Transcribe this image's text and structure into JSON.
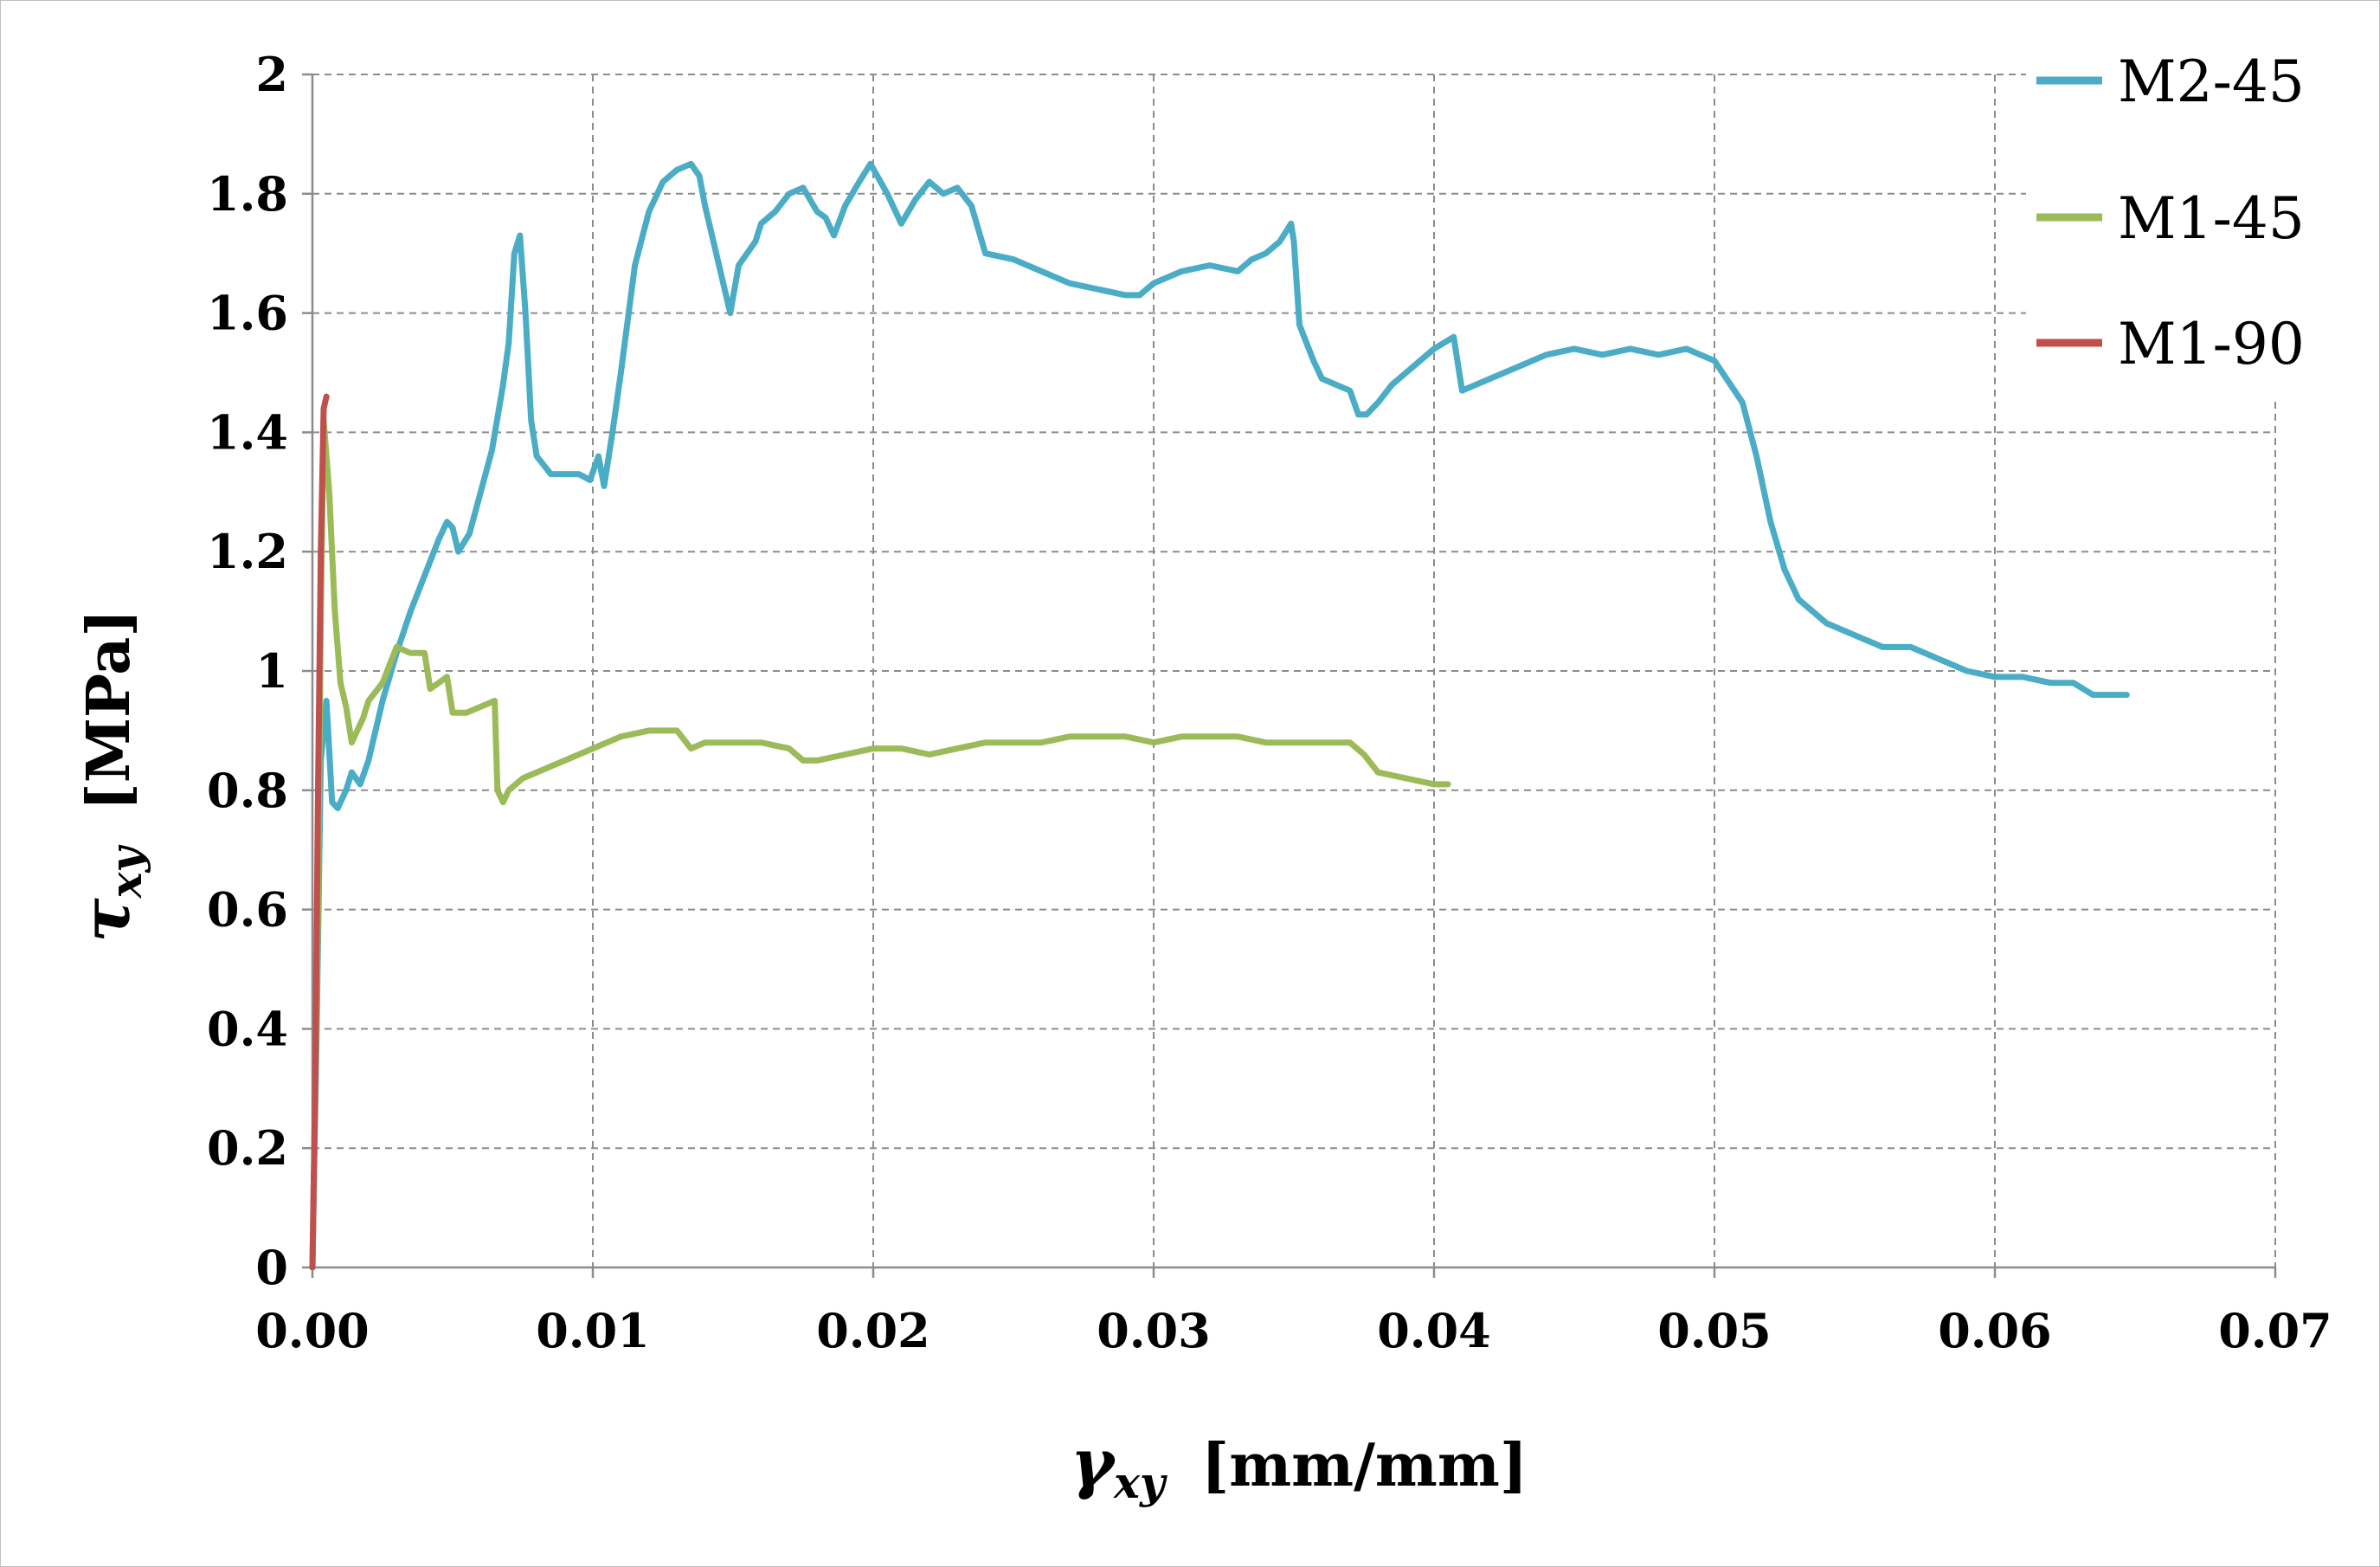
{
  "chart_data": {
    "type": "line",
    "title": "",
    "xlabel": {
      "symbol": "γ",
      "subscript": "xy",
      "unit": "[mm/mm]"
    },
    "ylabel": {
      "symbol": "τ",
      "subscript": "xy",
      "unit": "[MPa]"
    },
    "xlim": [
      0,
      0.07
    ],
    "ylim": [
      0,
      2
    ],
    "x_ticks": [
      "0.00",
      "0.01",
      "0.02",
      "0.03",
      "0.04",
      "0.05",
      "0.06",
      "0.07"
    ],
    "y_ticks": [
      "0",
      "0.2",
      "0.4",
      "0.6",
      "0.8",
      "1",
      "1.2",
      "1.4",
      "1.6",
      "1.8",
      "2"
    ],
    "grid": true,
    "legend_position": "top-right",
    "series": [
      {
        "name": "M2-45",
        "color": "#4bacc6",
        "points": [
          [
            0.0,
            0.0
          ],
          [
            0.00015,
            0.4
          ],
          [
            0.0003,
            0.85
          ],
          [
            0.0005,
            0.95
          ],
          [
            0.0007,
            0.78
          ],
          [
            0.0009,
            0.77
          ],
          [
            0.0012,
            0.8
          ],
          [
            0.0014,
            0.83
          ],
          [
            0.0017,
            0.81
          ],
          [
            0.002,
            0.85
          ],
          [
            0.0025,
            0.95
          ],
          [
            0.003,
            1.03
          ],
          [
            0.0035,
            1.1
          ],
          [
            0.004,
            1.16
          ],
          [
            0.0045,
            1.22
          ],
          [
            0.0048,
            1.25
          ],
          [
            0.005,
            1.24
          ],
          [
            0.0052,
            1.2
          ],
          [
            0.0056,
            1.23
          ],
          [
            0.006,
            1.3
          ],
          [
            0.0064,
            1.37
          ],
          [
            0.0068,
            1.48
          ],
          [
            0.007,
            1.55
          ],
          [
            0.0072,
            1.7
          ],
          [
            0.0074,
            1.73
          ],
          [
            0.0076,
            1.6
          ],
          [
            0.0078,
            1.42
          ],
          [
            0.008,
            1.36
          ],
          [
            0.0085,
            1.33
          ],
          [
            0.009,
            1.33
          ],
          [
            0.0095,
            1.33
          ],
          [
            0.0099,
            1.32
          ],
          [
            0.0102,
            1.36
          ],
          [
            0.0104,
            1.31
          ],
          [
            0.0107,
            1.4
          ],
          [
            0.011,
            1.5
          ],
          [
            0.0115,
            1.68
          ],
          [
            0.012,
            1.77
          ],
          [
            0.0125,
            1.82
          ],
          [
            0.013,
            1.84
          ],
          [
            0.0135,
            1.85
          ],
          [
            0.0138,
            1.83
          ],
          [
            0.014,
            1.78
          ],
          [
            0.0145,
            1.68
          ],
          [
            0.0148,
            1.62
          ],
          [
            0.0149,
            1.6
          ],
          [
            0.0152,
            1.68
          ],
          [
            0.0158,
            1.72
          ],
          [
            0.016,
            1.75
          ],
          [
            0.0165,
            1.77
          ],
          [
            0.017,
            1.8
          ],
          [
            0.0175,
            1.81
          ],
          [
            0.018,
            1.77
          ],
          [
            0.0183,
            1.76
          ],
          [
            0.0186,
            1.73
          ],
          [
            0.019,
            1.78
          ],
          [
            0.0195,
            1.82
          ],
          [
            0.0199,
            1.85
          ],
          [
            0.0205,
            1.8
          ],
          [
            0.021,
            1.75
          ],
          [
            0.0215,
            1.79
          ],
          [
            0.022,
            1.82
          ],
          [
            0.0225,
            1.8
          ],
          [
            0.023,
            1.81
          ],
          [
            0.0235,
            1.78
          ],
          [
            0.024,
            1.7
          ],
          [
            0.025,
            1.69
          ],
          [
            0.026,
            1.67
          ],
          [
            0.027,
            1.65
          ],
          [
            0.028,
            1.64
          ],
          [
            0.029,
            1.63
          ],
          [
            0.0295,
            1.63
          ],
          [
            0.03,
            1.65
          ],
          [
            0.031,
            1.67
          ],
          [
            0.032,
            1.68
          ],
          [
            0.033,
            1.67
          ],
          [
            0.0335,
            1.69
          ],
          [
            0.034,
            1.7
          ],
          [
            0.0345,
            1.72
          ],
          [
            0.0349,
            1.75
          ],
          [
            0.035,
            1.72
          ],
          [
            0.0352,
            1.58
          ],
          [
            0.0357,
            1.52
          ],
          [
            0.036,
            1.49
          ],
          [
            0.0365,
            1.48
          ],
          [
            0.037,
            1.47
          ],
          [
            0.0373,
            1.43
          ],
          [
            0.0376,
            1.43
          ],
          [
            0.038,
            1.45
          ],
          [
            0.0385,
            1.48
          ],
          [
            0.039,
            1.5
          ],
          [
            0.0395,
            1.52
          ],
          [
            0.04,
            1.54
          ],
          [
            0.0407,
            1.56
          ],
          [
            0.041,
            1.47
          ],
          [
            0.042,
            1.49
          ],
          [
            0.043,
            1.51
          ],
          [
            0.044,
            1.53
          ],
          [
            0.045,
            1.54
          ],
          [
            0.046,
            1.53
          ],
          [
            0.047,
            1.54
          ],
          [
            0.048,
            1.53
          ],
          [
            0.049,
            1.54
          ],
          [
            0.05,
            1.52
          ],
          [
            0.051,
            1.45
          ],
          [
            0.0515,
            1.36
          ],
          [
            0.052,
            1.25
          ],
          [
            0.0525,
            1.17
          ],
          [
            0.053,
            1.12
          ],
          [
            0.054,
            1.08
          ],
          [
            0.055,
            1.06
          ],
          [
            0.056,
            1.04
          ],
          [
            0.057,
            1.04
          ],
          [
            0.058,
            1.02
          ],
          [
            0.059,
            1.0
          ],
          [
            0.06,
            0.99
          ],
          [
            0.061,
            0.99
          ],
          [
            0.062,
            0.98
          ],
          [
            0.0628,
            0.98
          ],
          [
            0.0635,
            0.96
          ],
          [
            0.064,
            0.96
          ],
          [
            0.0647,
            0.96
          ]
        ]
      },
      {
        "name": "M1-45",
        "color": "#9bbb59",
        "points": [
          [
            0.0,
            0.0
          ],
          [
            0.0002,
            0.6
          ],
          [
            0.0003,
            1.1
          ],
          [
            0.0004,
            1.42
          ],
          [
            0.0006,
            1.3
          ],
          [
            0.0008,
            1.1
          ],
          [
            0.001,
            0.98
          ],
          [
            0.0012,
            0.94
          ],
          [
            0.0014,
            0.88
          ],
          [
            0.0016,
            0.9
          ],
          [
            0.0018,
            0.92
          ],
          [
            0.002,
            0.95
          ],
          [
            0.0025,
            0.98
          ],
          [
            0.003,
            1.04
          ],
          [
            0.0035,
            1.03
          ],
          [
            0.004,
            1.03
          ],
          [
            0.0042,
            0.97
          ],
          [
            0.0045,
            0.98
          ],
          [
            0.0048,
            0.99
          ],
          [
            0.005,
            0.93
          ],
          [
            0.0055,
            0.93
          ],
          [
            0.006,
            0.94
          ],
          [
            0.0065,
            0.95
          ],
          [
            0.0066,
            0.8
          ],
          [
            0.0068,
            0.78
          ],
          [
            0.007,
            0.8
          ],
          [
            0.0075,
            0.82
          ],
          [
            0.008,
            0.83
          ],
          [
            0.009,
            0.85
          ],
          [
            0.01,
            0.87
          ],
          [
            0.011,
            0.89
          ],
          [
            0.012,
            0.9
          ],
          [
            0.013,
            0.9
          ],
          [
            0.0135,
            0.87
          ],
          [
            0.014,
            0.88
          ],
          [
            0.015,
            0.88
          ],
          [
            0.016,
            0.88
          ],
          [
            0.017,
            0.87
          ],
          [
            0.0175,
            0.85
          ],
          [
            0.018,
            0.85
          ],
          [
            0.019,
            0.86
          ],
          [
            0.02,
            0.87
          ],
          [
            0.021,
            0.87
          ],
          [
            0.022,
            0.86
          ],
          [
            0.023,
            0.87
          ],
          [
            0.024,
            0.88
          ],
          [
            0.025,
            0.88
          ],
          [
            0.026,
            0.88
          ],
          [
            0.027,
            0.89
          ],
          [
            0.028,
            0.89
          ],
          [
            0.029,
            0.89
          ],
          [
            0.03,
            0.88
          ],
          [
            0.031,
            0.89
          ],
          [
            0.032,
            0.89
          ],
          [
            0.033,
            0.89
          ],
          [
            0.034,
            0.88
          ],
          [
            0.035,
            0.88
          ],
          [
            0.036,
            0.88
          ],
          [
            0.037,
            0.88
          ],
          [
            0.0375,
            0.86
          ],
          [
            0.038,
            0.83
          ],
          [
            0.039,
            0.82
          ],
          [
            0.04,
            0.81
          ],
          [
            0.0405,
            0.81
          ]
        ]
      },
      {
        "name": "M1-90",
        "color": "#c0504d",
        "points": [
          [
            0.0,
            0.0
          ],
          [
            0.0001,
            0.3
          ],
          [
            0.0002,
            0.8
          ],
          [
            0.0003,
            1.2
          ],
          [
            0.0004,
            1.44
          ],
          [
            0.0005,
            1.46
          ]
        ]
      }
    ]
  }
}
